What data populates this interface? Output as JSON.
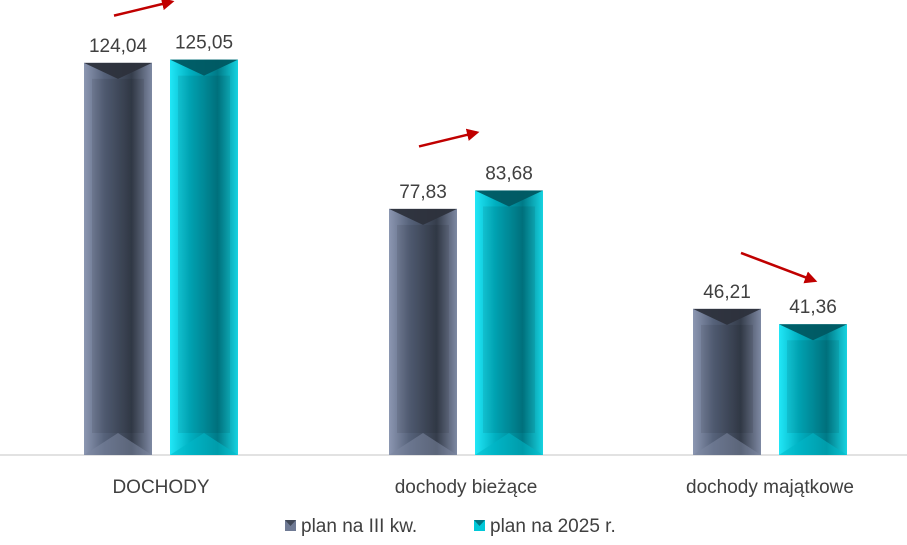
{
  "chart_data": {
    "type": "bar",
    "categories": [
      "DOCHODY",
      "dochody bieżące",
      "dochody majątkowe"
    ],
    "series": [
      {
        "name": "plan na III kw.",
        "values": [
          124.04,
          77.83,
          46.21
        ],
        "value_labels": [
          "124,04",
          "77,83",
          "46,21"
        ],
        "color": "#6F7A94"
      },
      {
        "name": "plan na 2025 r.",
        "values": [
          125.05,
          83.68,
          41.36
        ],
        "value_labels": [
          "125,05",
          "83,68",
          "41,36"
        ],
        "color": "#00C8D8"
      }
    ],
    "ylim": [
      0,
      130
    ],
    "grid": false,
    "legend": "bottom-center",
    "trend_arrows": [
      {
        "category": "DOCHODY",
        "direction": "up",
        "color": "#C00000"
      },
      {
        "category": "dochody bieżące",
        "direction": "up",
        "color": "#C00000"
      },
      {
        "category": "dochody majątkowe",
        "direction": "down",
        "color": "#C00000"
      }
    ]
  }
}
